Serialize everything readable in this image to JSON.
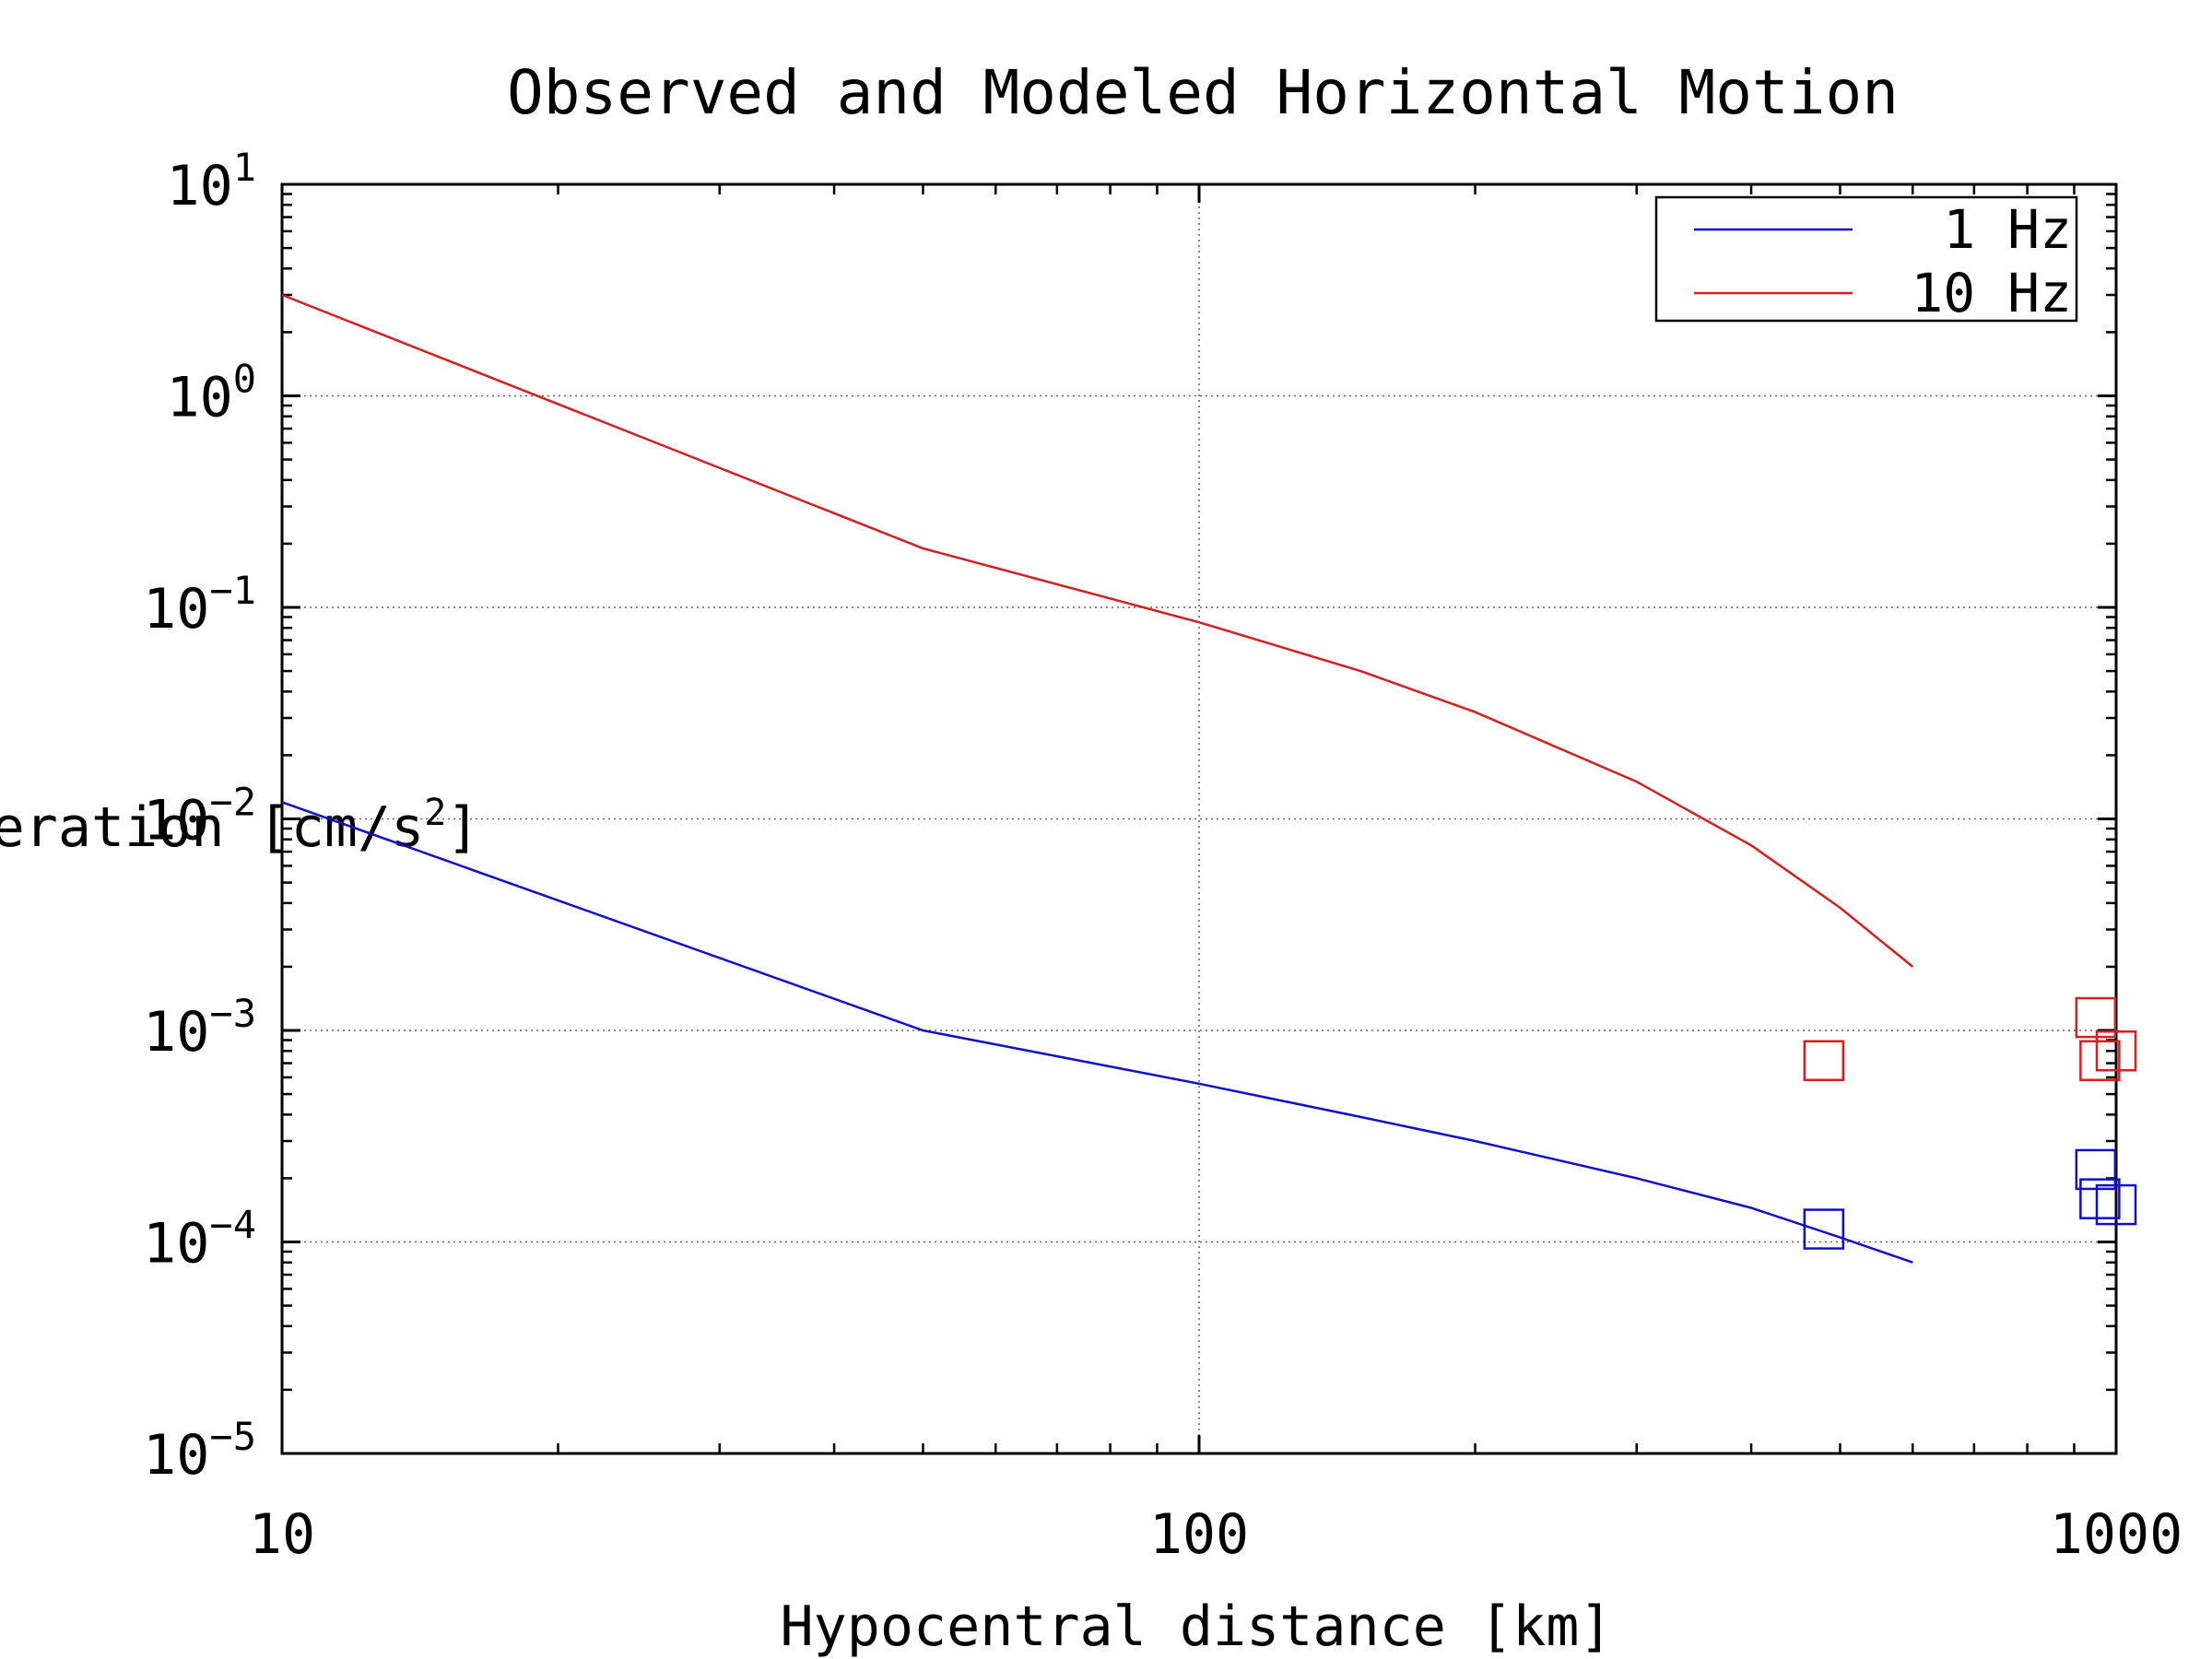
{
  "chart_data": {
    "type": "line",
    "title": "Observed and Modeled Horizontal Motion",
    "xlabel": "Hypocentral distance [km]",
    "ylabel_prefix": "Acceleration [cm/s",
    "ylabel_exp": "2",
    "ylabel_suffix": "]",
    "x_scale": "log",
    "y_scale": "log",
    "xlim": [
      10,
      1000
    ],
    "ylim": [
      1e-05,
      10
    ],
    "grid": "dotted",
    "legend_position": "top-right",
    "x_ticks": [
      {
        "value": 10,
        "label": "10"
      },
      {
        "value": 100,
        "label": "100"
      },
      {
        "value": 1000,
        "label": "1000"
      }
    ],
    "y_ticks": [
      {
        "value": 1e-05,
        "base": "10",
        "exp": "−5"
      },
      {
        "value": 0.0001,
        "base": "10",
        "exp": "−4"
      },
      {
        "value": 0.001,
        "base": "10",
        "exp": "−3"
      },
      {
        "value": 0.01,
        "base": "10",
        "exp": "−2"
      },
      {
        "value": 0.1,
        "base": "10",
        "exp": "−1"
      },
      {
        "value": 1,
        "base": "10",
        "exp": "0"
      },
      {
        "value": 10,
        "base": "10",
        "exp": "1"
      }
    ],
    "series": [
      {
        "name": "1 Hz",
        "color": "#1010c8",
        "line": {
          "x": [
            10,
            50,
            100,
            150,
            200,
            300,
            400,
            500,
            600
          ],
          "y": [
            0.012,
            0.001,
            0.00056,
            0.00039,
            0.0003,
            0.0002,
            0.000145,
            0.000105,
            8e-05
          ]
        },
        "observed": {
          "x": [
            480,
            950,
            960,
            1000
          ],
          "y": [
            0.000115,
            0.00022,
            0.00016,
            0.00015
          ]
        }
      },
      {
        "name": "10 Hz",
        "color": "#d42020",
        "line": {
          "x": [
            10,
            50,
            100,
            150,
            200,
            300,
            400,
            500,
            600
          ],
          "y": [
            3.0,
            0.19,
            0.085,
            0.05,
            0.032,
            0.015,
            0.0075,
            0.0038,
            0.002
          ]
        },
        "observed": {
          "x": [
            480,
            950,
            960,
            1000
          ],
          "y": [
            0.00072,
            0.00115,
            0.00072,
            0.0008
          ]
        }
      }
    ]
  }
}
